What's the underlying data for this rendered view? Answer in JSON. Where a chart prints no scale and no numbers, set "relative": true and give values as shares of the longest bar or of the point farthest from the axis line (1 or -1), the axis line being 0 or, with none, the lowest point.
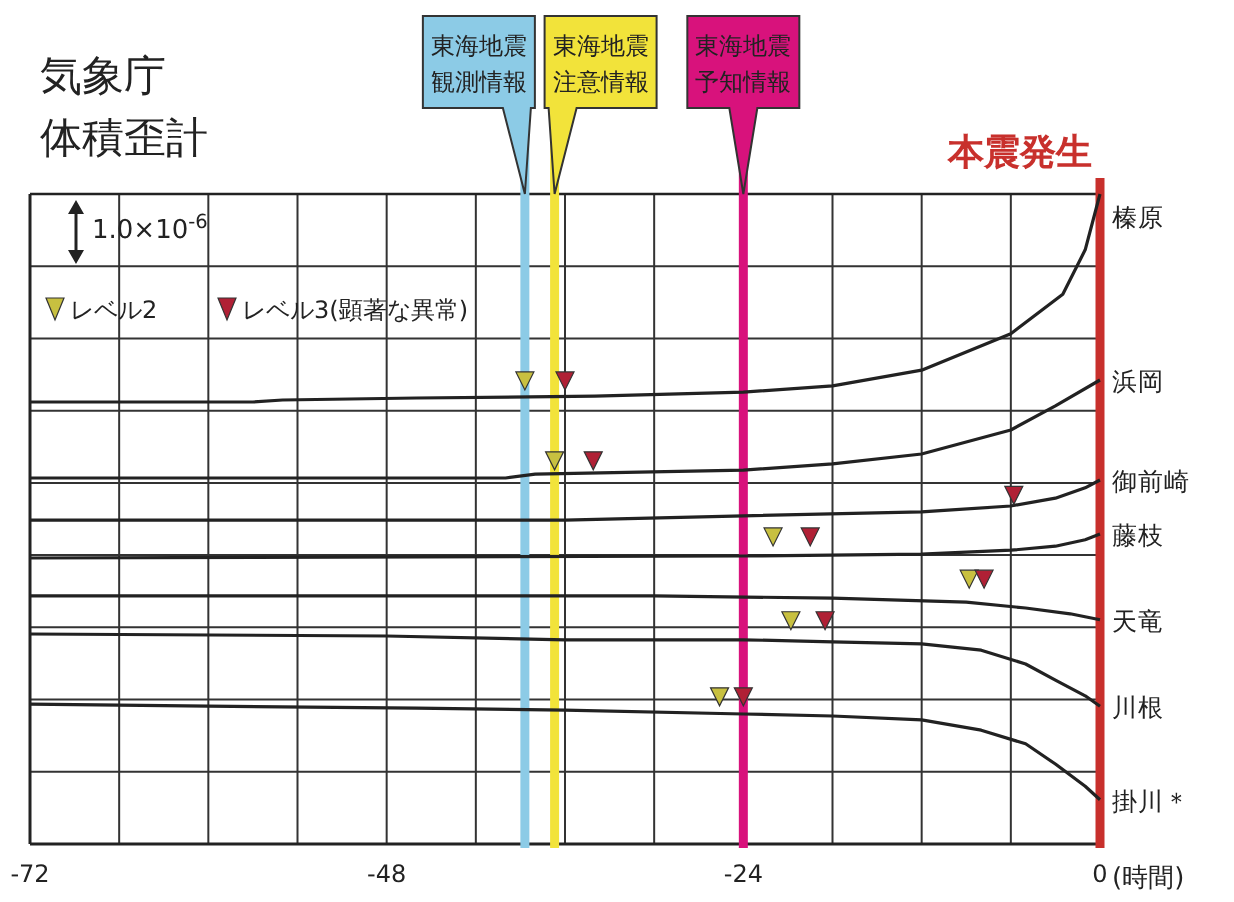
{
  "chart_data": {
    "type": "line",
    "title": "気象庁",
    "subtitle": "体積歪計",
    "xlabel": "(時間)",
    "relative": true,
    "xlim": [
      -72,
      0
    ],
    "xticks": [
      -72,
      {
        "value": -66,
        "label": null
      },
      {
        "value": -60,
        "label": null
      },
      {
        "value": -54,
        "label": null
      },
      -48,
      {
        "value": -42,
        "label": null
      },
      {
        "value": -36,
        "label": null
      },
      {
        "value": -30,
        "label": null
      },
      -24,
      {
        "value": -18,
        "label": null
      },
      {
        "value": -12,
        "label": null
      },
      {
        "value": -6,
        "label": null
      },
      0
    ],
    "grid": true,
    "legend": "top left",
    "marker": "none",
    "line_style": "solid",
    "annotations": [
      "1.0×10$^{-6}$"
    ],
    "ref_lines": [
      {
        "axis": "x",
        "value": -38.7,
        "label": "東海地震観測情報",
        "color": "#8ccbe6"
      },
      {
        "axis": "x",
        "value": -36.7,
        "label": "東海地震注意情報",
        "color": "#f2e33a"
      },
      {
        "axis": "x",
        "value": -24,
        "label": "東海地震予知情報",
        "color": "#d8127c"
      },
      {
        "axis": "x",
        "value": 0,
        "label": "本震発生",
        "color": "#c8302c"
      }
    ],
    "series": [
      {
        "name": "榛原",
        "color": "#222222",
        "x": [
          -72,
          -57,
          -55,
          -46,
          -34,
          -24,
          -18,
          -12,
          -6,
          -2.5,
          -1,
          0
        ],
        "values": [
          0.68,
          0.68,
          0.683,
          0.686,
          0.689,
          0.695,
          0.705,
          0.729,
          0.785,
          0.846,
          0.914,
          1.0
        ]
      },
      {
        "name": "浜岡",
        "color": "#222222",
        "x": [
          -72,
          -40,
          -38,
          -24,
          -18,
          -12,
          -6,
          -3,
          0
        ],
        "values": [
          0.563,
          0.563,
          0.569,
          0.575,
          0.585,
          0.6,
          0.637,
          0.674,
          0.714
        ]
      },
      {
        "name": "御前崎",
        "color": "#222222",
        "x": [
          -72,
          -36,
          -24,
          -12,
          -6,
          -3,
          -1,
          0
        ],
        "values": [
          0.498,
          0.498,
          0.505,
          0.511,
          0.52,
          0.532,
          0.548,
          0.56
        ]
      },
      {
        "name": "藤枝",
        "color": "#222222",
        "x": [
          -72,
          -24,
          -12,
          -6,
          -3,
          -1,
          0
        ],
        "values": [
          0.44,
          0.443,
          0.446,
          0.452,
          0.458,
          0.468,
          0.477
        ]
      },
      {
        "name": "天竜",
        "color": "#222222",
        "x": [
          -72,
          -30,
          -18,
          -9,
          -5,
          -2,
          0
        ],
        "values": [
          0.382,
          0.382,
          0.378,
          0.372,
          0.363,
          0.354,
          0.345
        ]
      },
      {
        "name": "川根",
        "color": "#222222",
        "x": [
          -72,
          -48,
          -36,
          -24,
          -18,
          -12,
          -8,
          -5,
          -3,
          -1,
          0
        ],
        "values": [
          0.323,
          0.32,
          0.314,
          0.314,
          0.311,
          0.308,
          0.298,
          0.277,
          0.252,
          0.228,
          0.212
        ]
      },
      {
        "name": "掛川＊",
        "color": "#222222",
        "x": [
          -72,
          -60,
          -46,
          -36,
          -24,
          -18,
          -12,
          -8,
          -5,
          -3,
          -1,
          0
        ],
        "values": [
          0.215,
          0.212,
          0.209,
          0.206,
          0.2,
          0.197,
          0.191,
          0.175,
          0.154,
          0.123,
          0.089,
          0.068
        ]
      },
      {
        "name": "レベル2",
        "type": "scatter",
        "marker": "triangle",
        "color": "#c8c040",
        "x": [
          -38.7,
          -36.7,
          -22.0,
          -8.8,
          -20.8,
          -25.6
        ],
        "values": [
          0.714,
          0.591,
          0.474,
          0.409,
          0.345,
          0.228
        ]
      },
      {
        "name": "レベル3(顕著な異常)",
        "type": "scatter",
        "marker": "triangle",
        "color": "#b02035",
        "x": [
          -36.0,
          -34.1,
          -5.8,
          -19.5,
          -7.8,
          -18.5,
          -24.0
        ],
        "values": [
          0.714,
          0.591,
          0.538,
          0.474,
          0.409,
          0.345,
          0.228
        ]
      }
    ]
  }
}
